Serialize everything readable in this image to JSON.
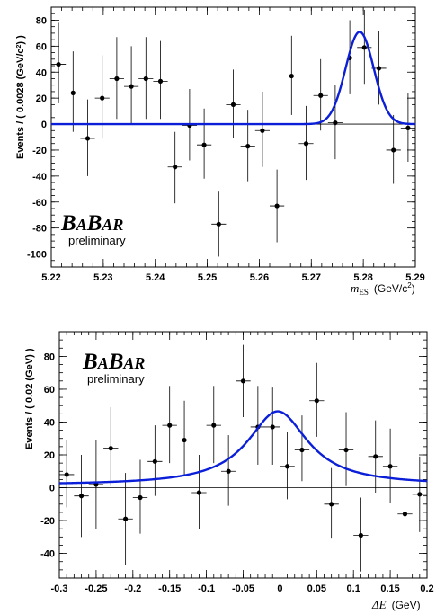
{
  "chart_data": [
    {
      "type": "scatter",
      "logo": "BABAR",
      "logo_parts": [
        "B",
        "A",
        "B",
        "A",
        "R"
      ],
      "subtitle": "preliminary",
      "xlabel_var": "m",
      "xlabel_sub": "ES",
      "xlabel_unit": "(GeV/c",
      "xlabel_pow": "2",
      "ylabel": "Events / ( 0.0028 (GeV/c",
      "ylabel_pow": "2",
      "ylabel_close": ") )",
      "xlim": [
        5.22,
        5.29
      ],
      "ylim": [
        -110,
        90
      ],
      "xticks": [
        5.22,
        5.23,
        5.24,
        5.25,
        5.26,
        5.27,
        5.28,
        5.29
      ],
      "xtick_labels": [
        "5.22",
        "5.23",
        "5.24",
        "5.25",
        "5.26",
        "5.27",
        "5.28",
        "5.29"
      ],
      "yticks": [
        -100,
        -80,
        -60,
        -40,
        -20,
        0,
        20,
        40,
        60,
        80
      ],
      "ytick_labels": [
        "-100",
        "-80",
        "-60",
        "-40",
        "-20",
        "0",
        "20",
        "40",
        "60",
        "80"
      ],
      "xerr": 0.0014,
      "x": [
        5.2214,
        5.2242,
        5.227,
        5.2298,
        5.2326,
        5.2354,
        5.2382,
        5.241,
        5.2438,
        5.2466,
        5.2494,
        5.2522,
        5.255,
        5.2578,
        5.2606,
        5.2634,
        5.2662,
        5.269,
        5.2718,
        5.2746,
        5.2774,
        5.2802,
        5.283,
        5.2858,
        5.2886
      ],
      "y": [
        46,
        24,
        -11,
        20,
        35,
        29,
        35,
        33,
        -33,
        -1,
        -16,
        -77,
        15,
        -17,
        -5,
        -63,
        37,
        -15,
        22,
        1,
        51,
        59,
        43,
        -20,
        -3
      ],
      "yerr_lo": [
        30,
        30,
        29,
        31,
        31,
        29,
        31,
        29,
        28,
        27,
        26,
        25,
        26,
        27,
        28,
        28,
        30,
        28,
        27,
        28,
        28,
        28,
        28,
        26,
        26
      ],
      "yerr_hi": [
        32,
        32,
        30,
        33,
        32,
        31,
        32,
        31,
        27,
        28,
        28,
        25,
        27,
        28,
        30,
        28,
        31,
        29,
        28,
        29,
        29,
        29,
        29,
        27,
        27
      ],
      "fit": {
        "shape": "gaussian",
        "mean": 5.2793,
        "sigma": 0.0027,
        "amplitude": 71,
        "baseline": 0,
        "color": "#0b1fd8"
      }
    },
    {
      "type": "scatter",
      "logo": "BABAR",
      "logo_parts": [
        "B",
        "A",
        "B",
        "A",
        "R"
      ],
      "subtitle": "preliminary",
      "xlabel_var": "ΔE",
      "xlabel_unit": "(GeV)",
      "ylabel": "Events / ( 0.02 (GeV) )",
      "xlim": [
        -0.3,
        0.2
      ],
      "ylim": [
        -55,
        95
      ],
      "xticks": [
        -0.3,
        -0.25,
        -0.2,
        -0.15,
        -0.1,
        -0.05,
        0,
        0.05,
        0.1,
        0.15,
        0.2
      ],
      "xtick_labels": [
        "-0.3",
        "-0.25",
        "-0.2",
        "-0.15",
        "-0.1",
        "-0.05",
        "0",
        "0.05",
        "0.1",
        "0.15",
        "0.2"
      ],
      "yticks": [
        -40,
        -20,
        0,
        20,
        40,
        60,
        80
      ],
      "ytick_labels": [
        "-40",
        "-20",
        "0",
        "20",
        "40",
        "60",
        "80"
      ],
      "xerr": 0.01,
      "x": [
        -0.29,
        -0.27,
        -0.25,
        -0.23,
        -0.21,
        -0.19,
        -0.17,
        -0.15,
        -0.13,
        -0.11,
        -0.09,
        -0.07,
        -0.05,
        -0.03,
        -0.01,
        0.01,
        0.03,
        0.05,
        0.07,
        0.09,
        0.11,
        0.13,
        0.15,
        0.17,
        0.19
      ],
      "y": [
        8,
        -5,
        2,
        24,
        -19,
        -6,
        16,
        38,
        29,
        -3,
        38,
        10,
        65,
        37,
        37,
        13,
        23,
        53,
        -10,
        23,
        -29,
        19,
        13,
        -16,
        -4
      ],
      "yerr_lo": [
        20,
        25,
        27,
        23,
        28,
        22,
        21,
        23,
        22,
        22,
        23,
        21,
        22,
        23,
        23,
        20,
        19,
        22,
        21,
        22,
        22,
        22,
        22,
        24,
        23
      ],
      "yerr_hi": [
        21,
        25,
        27,
        25,
        28,
        23,
        22,
        24,
        24,
        23,
        24,
        22,
        22,
        25,
        24,
        21,
        21,
        23,
        22,
        23,
        23,
        22,
        23,
        25,
        23
      ],
      "fit": {
        "shape": "lorentzian",
        "mean": -0.003,
        "gamma": 0.05,
        "amplitude": 45,
        "baseline": 1.5,
        "color": "#0b1fd8"
      }
    }
  ]
}
